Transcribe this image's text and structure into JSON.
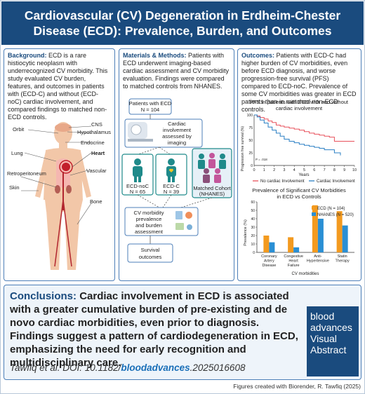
{
  "title": "Cardiovascular (CV) Degeneration in Erdheim-Chester Disease (ECD): Prevalence, Burden, and Outcomes",
  "title_line1": "Cardiovascular (CV) Degeneration in Erdheim-Chester",
  "title_line2": "Disease (ECD): Prevalence, Burden, and Outcomes",
  "background": {
    "heading": "Background:",
    "text": "ECD is a rare histiocytic neoplasm with underrecognized CV morbidity. This study evaluated CV burden, features, and outcomes in patients with (ECD-C) and without (ECD-noC) cardiac involvement, and compared findings to matched non-ECD controls."
  },
  "anatomy_labels": {
    "orbit": "Orbit",
    "cns": "CNS",
    "hypothalamus": "Hypothalamus",
    "endocrine": "Endocrine",
    "lung": "Lung",
    "heart": "Heart",
    "retroperitoneum": "Retroperitoneum",
    "vascular": "Vascular",
    "skin": "Skin",
    "bone": "Bone"
  },
  "methods": {
    "heading": "Materials & Methods:",
    "text": "Patients with ECD underwent imaging-based cardiac assessment and CV morbidity evaluation. Findings were compared to matched controls from NHANES."
  },
  "flow": {
    "patients": "Patients with ECD",
    "patients_n": "N = 104",
    "cardiac_line1": "Cardiac",
    "cardiac_line2": "involvement",
    "cardiac_line3": "assessed by",
    "cardiac_line4": "imaging",
    "ecd_noc": "ECD-noC",
    "ecd_noc_n": "N = 65",
    "ecd_c": "ECD-C",
    "ecd_c_n": "N = 39",
    "matched_line1": "Matched Cohort",
    "matched_line2": "(NHANES)",
    "cv_line1": "CV morbidity",
    "cv_line2": "prevalence",
    "cv_line3": "and burden",
    "cv_line4": "assessment",
    "survival_line1": "Survival",
    "survival_line2": "outcomes"
  },
  "outcomes": {
    "heading": "Outcomes:",
    "text": "Patients with ECD-C had higher burden of CV morbidities, even before ECD diagnosis, and worse progression-free survival (PFS) compared to ECD-noC. Prevalence of some CV morbidities was greater in ECD patients than in matched non-ECD controls."
  },
  "chart_data": [
    {
      "type": "line",
      "title_line1": "PFS in patients with ECD with and without",
      "title_line2": "cardiac involvement",
      "ylabel_line1": "Progression free survival (%)",
      "xlabel": "Years",
      "x_ticks": [
        "0",
        "1",
        "2",
        "3",
        "4",
        "5",
        "6",
        "7",
        "8",
        "9",
        "10"
      ],
      "y_ticks": [
        "100",
        "75",
        "50",
        "25",
        "0"
      ],
      "ylim": [
        0,
        100
      ],
      "xlim": [
        0,
        10
      ],
      "annotation": "P = .018",
      "series": [
        {
          "name": "No cardiac Involvement",
          "color": "#e8505b",
          "x": [
            0,
            0.3,
            0.6,
            1.0,
            1.4,
            1.8,
            2.2,
            2.6,
            3.0,
            3.5,
            4.0,
            4.5,
            5.0,
            5.5,
            6.0,
            6.5,
            7.0,
            7.5,
            8.0,
            9.0,
            10.0
          ],
          "y": [
            100,
            98,
            95,
            92,
            88,
            85,
            80,
            78,
            76,
            74,
            72,
            70,
            67,
            64,
            62,
            60,
            58,
            56,
            48,
            48,
            48
          ]
        },
        {
          "name": "Cardiac Involvement",
          "color": "#2a7fc4",
          "x": [
            0,
            0.3,
            0.6,
            1.0,
            1.4,
            1.8,
            2.2,
            2.6,
            3.0,
            3.5,
            4.0,
            4.5,
            5.0,
            5.5,
            6.0,
            6.5,
            7.0,
            8.0,
            8.6
          ],
          "y": [
            100,
            96,
            90,
            84,
            76,
            70,
            64,
            58,
            52,
            48,
            45,
            42,
            40,
            38,
            36,
            34,
            31,
            25,
            20
          ]
        }
      ]
    },
    {
      "type": "bar",
      "title_line1": "Prevalence of Significant CV Morbidities",
      "title_line2": "in ECD vs Controls",
      "ylabel": "Prevalence (%)",
      "xlabel": "CV morbidities",
      "y_ticks": [
        "0",
        "10",
        "20",
        "30",
        "40",
        "50",
        "60"
      ],
      "ylim": [
        0,
        60
      ],
      "categories": [
        [
          "Coronary",
          "Artery",
          "Disease"
        ],
        [
          "Congestive",
          "Heart",
          "Failure"
        ],
        [
          "Anti-",
          "Hypertensive"
        ],
        [
          "Statin",
          "Therapy"
        ]
      ],
      "series": [
        {
          "name": "ECD (N = 104)",
          "color": "#f39a1f",
          "values": [
            20,
            18,
            56,
            49
          ]
        },
        {
          "name": "NHANES (N = 520)",
          "color": "#2a8fd4",
          "values": [
            12,
            6,
            40,
            32
          ]
        }
      ]
    }
  ],
  "conclusions": {
    "heading": "Conclusions:",
    "text": "Cardiac involvement in ECD is associated with a greater cumulative burden of pre-existing and de novo cardiac morbidities, even prior to diagnosis. Findings suggest a pattern of cardiodegeneration in ECD, emphasizing the need for early recognition and multidisciplinary care."
  },
  "citation": {
    "prefix": "Tawfiq et al. DOI: 10.1182/",
    "journal": "bloodadvances",
    "suffix": ".2025016608"
  },
  "logo": {
    "line1": "blood",
    "line2": "advances",
    "line3": "Visual",
    "line4": "Abstract"
  },
  "footer": "Figures created with Biorender, R. Tawfiq (2025)",
  "colors": {
    "navy": "#1a4b7e",
    "panel_border": "#4d7fb8",
    "teal": "#1f8a8a",
    "red": "#e8505b",
    "blue": "#2a7fc4",
    "orange": "#f39a1f"
  }
}
